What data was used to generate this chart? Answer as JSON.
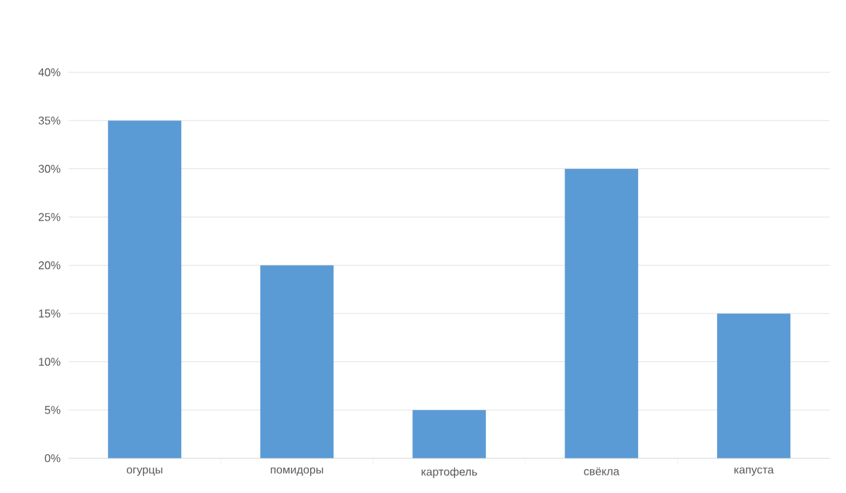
{
  "chart_data": {
    "type": "bar",
    "categories": [
      "огурцы",
      "помидоры",
      "картофель",
      "свёкла",
      "капуста"
    ],
    "values": [
      35,
      20,
      5,
      30,
      15
    ],
    "color": "#5b9bd5",
    "ylim": [
      0,
      40
    ],
    "yticks": [
      {
        "value": 0,
        "label": "0%"
      },
      {
        "value": 5,
        "label": "5%"
      },
      {
        "value": 10,
        "label": "10%"
      },
      {
        "value": 15,
        "label": "15%"
      },
      {
        "value": 20,
        "label": "20%"
      },
      {
        "value": 25,
        "label": "25%"
      },
      {
        "value": 30,
        "label": "30%"
      },
      {
        "value": 35,
        "label": "35%"
      },
      {
        "value": 40,
        "label": "40%"
      }
    ],
    "grid": "y"
  }
}
